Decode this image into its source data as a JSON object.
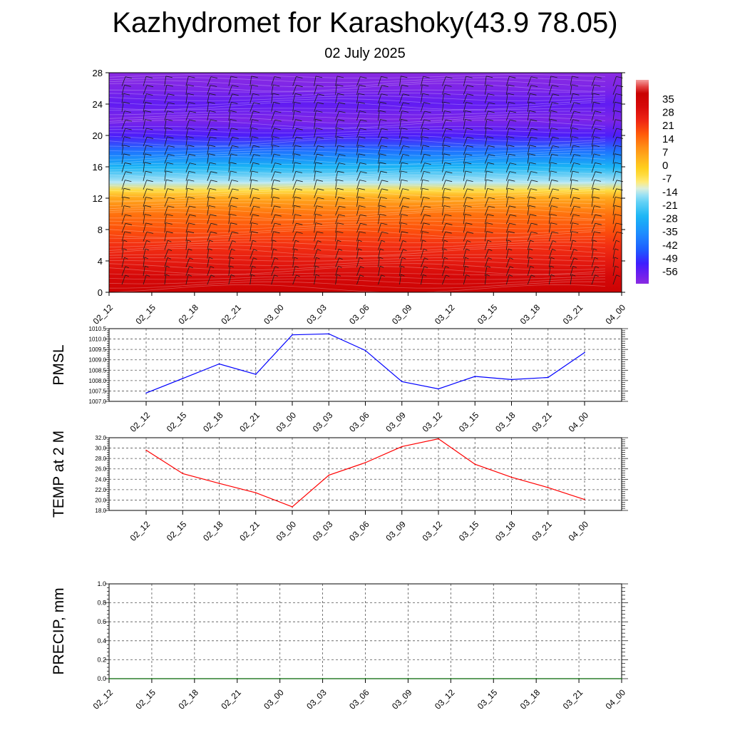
{
  "header": {
    "title": "Kazhydromet for Karashoky(43.9 78.05)",
    "subtitle": "02 July 2025"
  },
  "chart_data": [
    {
      "type": "heatmap",
      "name": "temperature-height-section",
      "x_ticks": [
        "02_12",
        "02_15",
        "02_18",
        "02_21",
        "03_00",
        "03_03",
        "03_06",
        "03_09",
        "03_12",
        "03_15",
        "03_18",
        "03_21",
        "04_00"
      ],
      "y_ticks": [
        0,
        4,
        8,
        12,
        16,
        20,
        24,
        28
      ],
      "ylim": [
        0,
        28
      ],
      "profile": {
        "heights": [
          0,
          2,
          4,
          6,
          8,
          10,
          12,
          13,
          14,
          16,
          18,
          20,
          22,
          24,
          26,
          28
        ],
        "values": [
          30,
          26,
          21,
          17,
          13,
          9,
          2,
          -8,
          -16,
          -28,
          -40,
          -52,
          -58,
          -54,
          -58,
          -60
        ]
      },
      "colorbar": {
        "labels": [
          "35",
          "28",
          "21",
          "14",
          "7",
          "0",
          "-7",
          "-14",
          "-21",
          "-28",
          "-35",
          "-42",
          "-49",
          "-56"
        ],
        "range": [
          -60,
          38
        ]
      },
      "wind_barbs": true
    },
    {
      "type": "line",
      "ylabel": "PMSL",
      "categories": [
        "02_12",
        "02_15",
        "02_18",
        "02_21",
        "03_00",
        "03_03",
        "03_06",
        "03_09",
        "03_12",
        "03_15",
        "03_18",
        "03_21",
        "04_00"
      ],
      "values": [
        1007.4,
        1008.1,
        1008.8,
        1008.3,
        1010.2,
        1010.25,
        1009.45,
        1007.95,
        1007.6,
        1008.2,
        1008.05,
        1008.15,
        1009.35
      ],
      "ylim": [
        1007.0,
        1010.5
      ],
      "y_ticks": [
        "1007.0",
        "1007.5",
        "1008.0",
        "1008.5",
        "1009.0",
        "1009.5",
        "1010.0",
        "1010.5"
      ],
      "color": "#0000ff",
      "grid": true
    },
    {
      "type": "line",
      "ylabel": "TEMP at 2 M",
      "categories": [
        "02_12",
        "02_15",
        "02_18",
        "02_21",
        "03_00",
        "03_03",
        "03_06",
        "03_09",
        "03_12",
        "03_15",
        "03_18",
        "03_21",
        "04_00"
      ],
      "values": [
        29.6,
        25.1,
        23.2,
        21.4,
        18.7,
        24.8,
        27.2,
        30.3,
        31.8,
        26.9,
        24.4,
        22.4,
        20.1
      ],
      "ylim": [
        18.0,
        32.0
      ],
      "y_ticks": [
        "18.0",
        "20.0",
        "22.0",
        "24.0",
        "26.0",
        "28.0",
        "30.0",
        "32.0"
      ],
      "color": "#ff0000",
      "grid": true
    },
    {
      "type": "line",
      "ylabel": "PRECIP, mm",
      "categories": [
        "02_12",
        "02_15",
        "02_18",
        "02_21",
        "03_00",
        "03_03",
        "03_06",
        "03_09",
        "03_12",
        "03_15",
        "03_18",
        "03_21",
        "04_00"
      ],
      "values": [
        0,
        0,
        0,
        0,
        0,
        0,
        0,
        0,
        0,
        0,
        0,
        0,
        0
      ],
      "ylim": [
        0.0,
        1.0
      ],
      "y_ticks": [
        "0.0",
        "0.2",
        "0.4",
        "0.6",
        "0.8",
        "1.0"
      ],
      "color": "#006400",
      "grid": true
    }
  ]
}
